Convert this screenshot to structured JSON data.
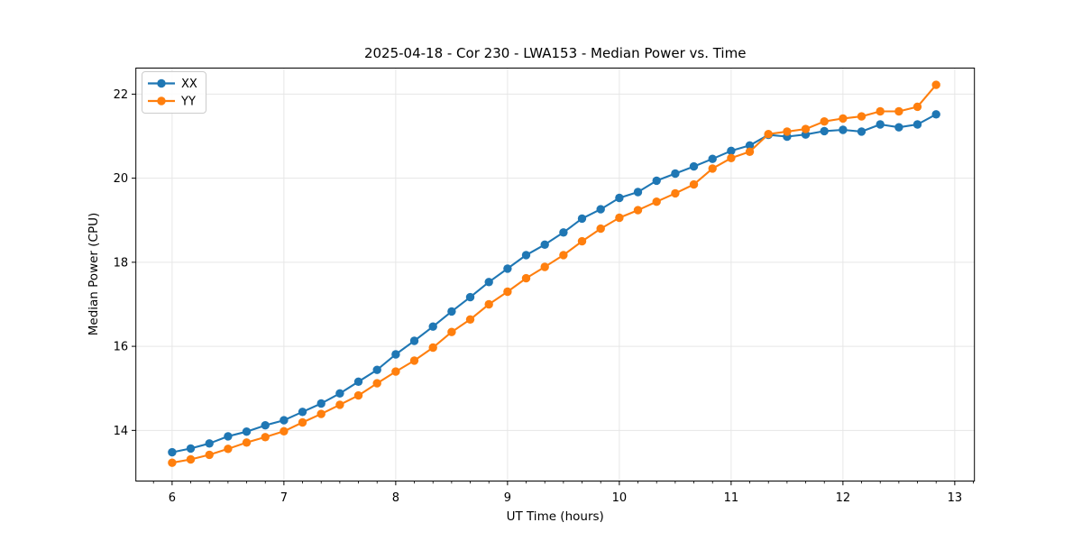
{
  "chart_data": {
    "type": "line",
    "title": "2025-04-18 - Cor 230 - LWA153 - Median Power vs. Time",
    "xlabel": "UT Time (hours)",
    "ylabel": "Median Power (CPU)",
    "xlim": [
      5.676,
      13.176
    ],
    "ylim": [
      12.795,
      22.62
    ],
    "x_major_ticks": [
      6,
      7,
      8,
      9,
      10,
      11,
      12,
      13
    ],
    "x_minor_step": 0.166667,
    "y_major_ticks": [
      14,
      16,
      18,
      20,
      22
    ],
    "grid": true,
    "legend_position": "upper-left",
    "background_color": "#ffffff",
    "grid_color": "#e6e6e6",
    "spine_color": "#000000",
    "x": [
      6.0,
      6.1667,
      6.3333,
      6.5,
      6.6667,
      6.8333,
      7.0,
      7.1667,
      7.3333,
      7.5,
      7.6667,
      7.8333,
      8.0,
      8.1667,
      8.3333,
      8.5,
      8.6667,
      8.8333,
      9.0,
      9.1667,
      9.3333,
      9.5,
      9.6667,
      9.8333,
      10.0,
      10.1667,
      10.3333,
      10.5,
      10.6667,
      10.8333,
      11.0,
      11.1667,
      11.3333,
      11.5,
      11.6667,
      11.8333,
      12.0,
      12.1667,
      12.3333,
      12.5,
      12.6667,
      12.8333
    ],
    "series": [
      {
        "name": "XX",
        "color": "#1f77b4",
        "values": [
          13.48,
          13.57,
          13.69,
          13.86,
          13.97,
          14.12,
          14.24,
          14.44,
          14.64,
          14.88,
          15.16,
          15.44,
          15.81,
          16.13,
          16.47,
          16.83,
          17.17,
          17.53,
          17.85,
          18.17,
          18.42,
          18.71,
          19.04,
          19.26,
          19.53,
          19.67,
          19.94,
          20.11,
          20.28,
          20.46,
          20.65,
          20.78,
          21.03,
          20.99,
          21.04,
          21.12,
          21.15,
          21.11,
          21.28,
          21.21,
          21.28,
          21.52
        ]
      },
      {
        "name": "YY",
        "color": "#ff7f0e",
        "values": [
          13.23,
          13.31,
          13.42,
          13.56,
          13.71,
          13.84,
          13.98,
          14.19,
          14.39,
          14.61,
          14.83,
          15.12,
          15.4,
          15.66,
          15.97,
          16.34,
          16.64,
          17.0,
          17.3,
          17.62,
          17.89,
          18.17,
          18.5,
          18.8,
          19.06,
          19.24,
          19.44,
          19.64,
          19.85,
          20.23,
          20.48,
          20.63,
          21.05,
          21.11,
          21.17,
          21.35,
          21.42,
          21.47,
          21.59,
          21.59,
          21.7,
          22.22
        ]
      }
    ]
  }
}
